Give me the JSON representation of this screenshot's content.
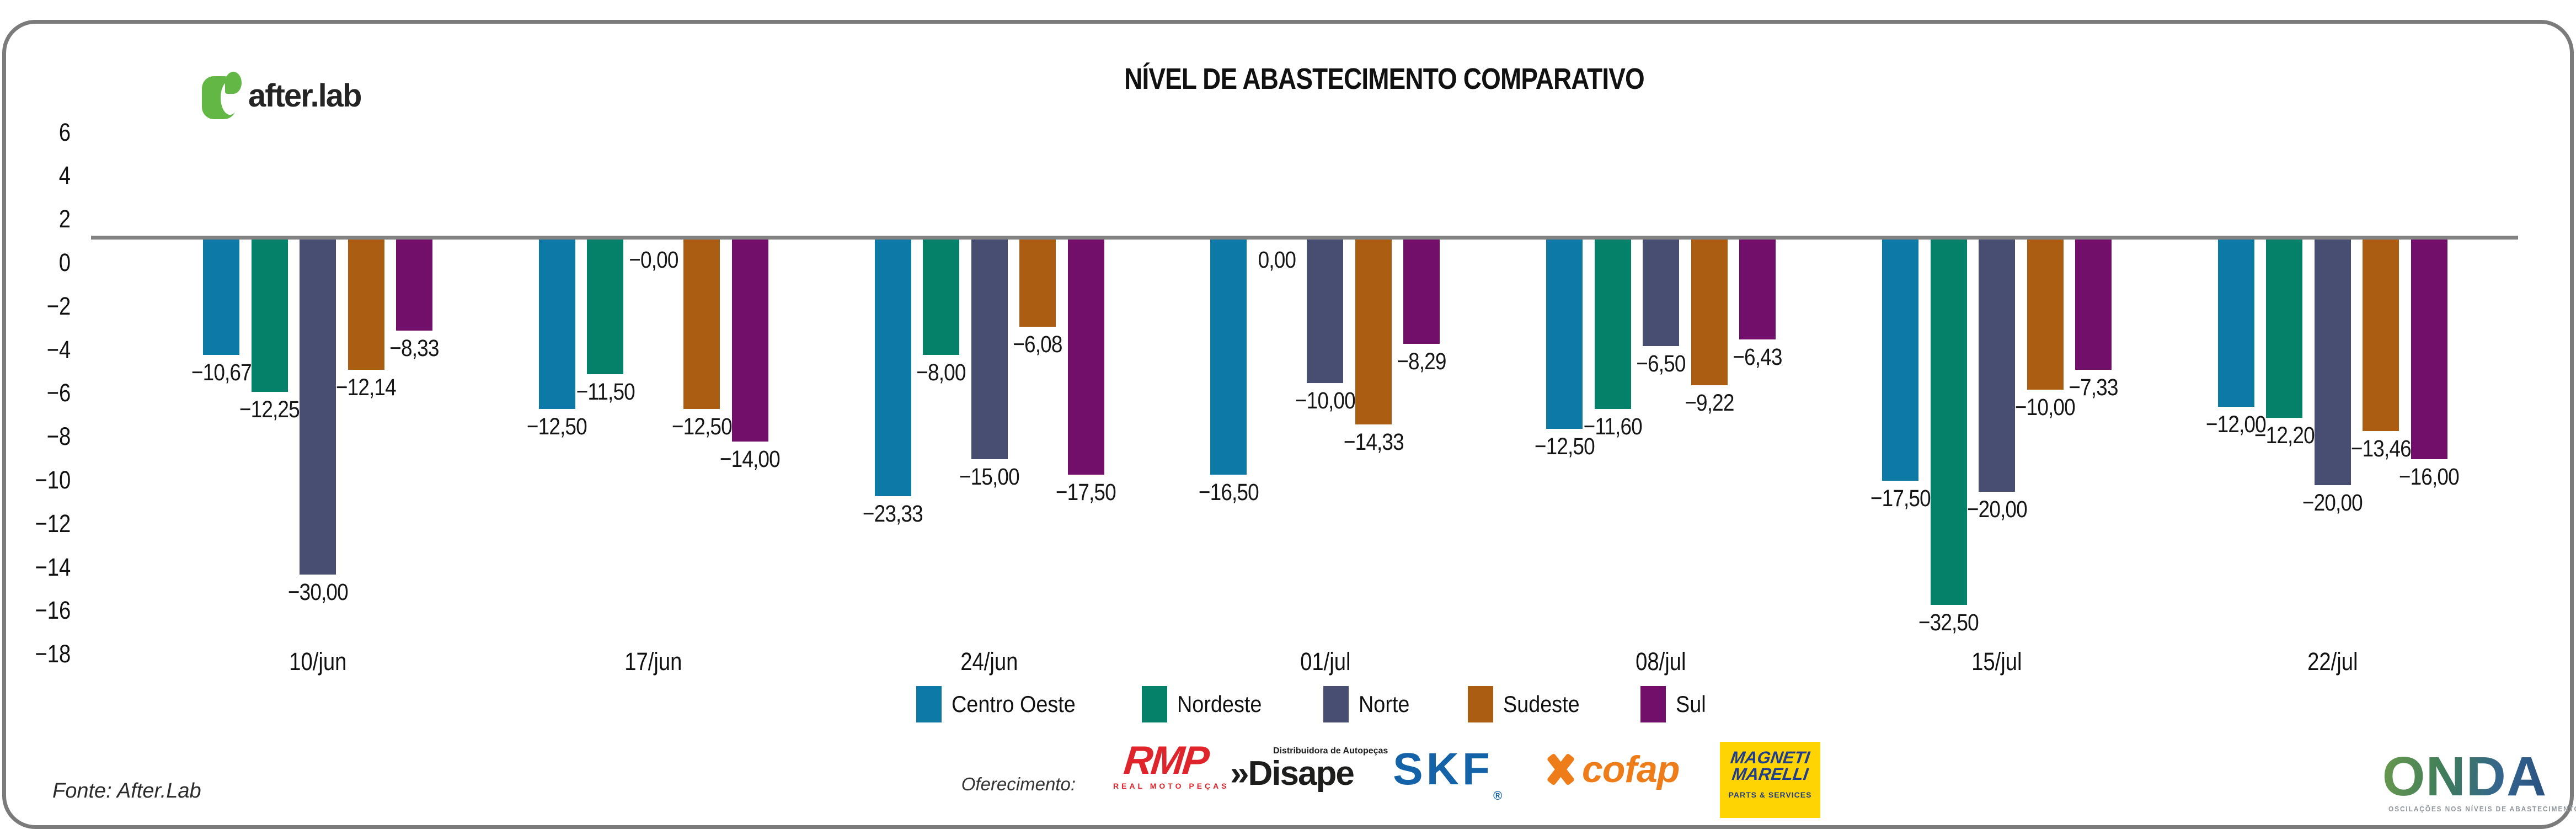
{
  "header": {
    "logo_text": "after.lab",
    "title": "NÍVEL DE ABASTECIMENTO COMPARATIVO"
  },
  "footer": {
    "fonte": "Fonte: After.Lab",
    "oferecimento": "Oferecimento:"
  },
  "sponsors": {
    "rmp": {
      "name": "RMP",
      "subtitle": "REAL MOTO PEÇAS"
    },
    "disape": {
      "chevrons": "»",
      "name": "Disape",
      "tagline": "Distribuidora de Autopeças"
    },
    "skf": {
      "name": "SKF",
      "registered": "®"
    },
    "cofap": {
      "name": "cofap"
    },
    "magneti": {
      "line1": "MAGNETI",
      "line2": "MARELLI",
      "subtitle": "PARTS & SERVICES"
    },
    "onda": {
      "name": "ONDA",
      "tagline": "OSCILAÇÕES NOS NÍVEIS DE ABASTECIMENTO E PREÇOS"
    }
  },
  "chart_data": {
    "type": "bar",
    "title": "NÍVEL DE ABASTECIMENTO COMPARATIVO",
    "categories": [
      "10/jun",
      "17/jun",
      "24/jun",
      "01/jul",
      "08/jul",
      "15/jul",
      "22/jul"
    ],
    "series": [
      {
        "name": "Centro Oeste",
        "color": "#0d7aa6",
        "values": [
          -10.67,
          -12.5,
          -23.33,
          -16.5,
          -12.5,
          -17.5,
          -12.0
        ],
        "labels": [
          "−10,67",
          "−12,50",
          "−23,33",
          "−16,50",
          "−12,50",
          "−17,50",
          "−12,00"
        ],
        "visual_depths": [
          5.3,
          7.8,
          11.8,
          10.8,
          8.7,
          11.1,
          7.7
        ]
      },
      {
        "name": "Nordeste",
        "color": "#068169",
        "values": [
          -12.25,
          -11.5,
          -8.0,
          0.0,
          -11.6,
          -32.5,
          -12.2
        ],
        "labels": [
          "−12,25",
          "−11,50",
          "−8,00",
          "0,00",
          "−11,60",
          "−32,50",
          "−12,20"
        ],
        "visual_depths": [
          7.0,
          6.2,
          5.3,
          0,
          7.8,
          16.8,
          8.2
        ]
      },
      {
        "name": "Norte",
        "color": "#474e72",
        "values": [
          -30.0,
          0.0,
          -15.0,
          -10.0,
          -6.5,
          -20.0,
          -20.0
        ],
        "labels": [
          "−30,00",
          "−0,00",
          "−15,00",
          "−10,00",
          "−6,50",
          "−20,00",
          "−20,00"
        ],
        "visual_depths": [
          15.4,
          0,
          10.1,
          6.6,
          4.9,
          11.6,
          11.3
        ]
      },
      {
        "name": "Sudeste",
        "color": "#ab5e12",
        "values": [
          -12.14,
          -12.5,
          -6.08,
          -14.33,
          -9.22,
          -10.0,
          -13.46
        ],
        "labels": [
          "−12,14",
          "−12,50",
          "−6,08",
          "−14,33",
          "−9,22",
          "−10,00",
          "−13,46"
        ],
        "visual_depths": [
          6.0,
          7.8,
          4.0,
          8.5,
          6.7,
          6.9,
          8.8
        ]
      },
      {
        "name": "Sul",
        "color": "#720f6b",
        "values": [
          -8.33,
          -14.0,
          -17.5,
          -8.29,
          -6.43,
          -7.33,
          -16.0
        ],
        "labels": [
          "−8,33",
          "−14,00",
          "−17,50",
          "−8,29",
          "−6,43",
          "−7,33",
          "−16,00"
        ],
        "visual_depths": [
          4.2,
          9.3,
          10.8,
          4.8,
          4.6,
          6.0,
          10.1
        ]
      }
    ],
    "yticks": [
      6,
      4,
      2,
      0,
      -2,
      -4,
      -6,
      -8,
      -10,
      -12,
      -14,
      -16,
      -18
    ],
    "ylim": [
      -18.5,
      6.5
    ],
    "baseline_value": 1.15,
    "xlabel": "",
    "ylabel": "",
    "grid": false,
    "legend_position": "bottom",
    "value_label_decimal": "comma"
  }
}
